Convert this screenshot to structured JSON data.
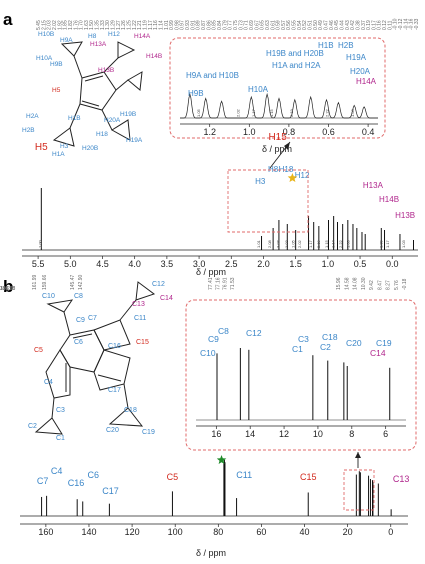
{
  "panels": [
    {
      "label": "a"
    },
    {
      "label": "b"
    }
  ],
  "chart_data": [
    {
      "type": "line",
      "id": "h1-nmr",
      "xlabel": "δ / ppm",
      "xlim": [
        5.75,
        -0.4
      ],
      "xticks": [
        "5.5",
        "5.0",
        "4.5",
        "4.0",
        "3.5",
        "3.0",
        "2.5",
        "2.0",
        "1.5",
        "1.0",
        "0.5",
        "0.0"
      ],
      "xtick_values": [
        5.5,
        5.0,
        4.5,
        4.0,
        3.5,
        3.0,
        2.5,
        2.0,
        1.5,
        1.0,
        0.5,
        0.0
      ],
      "peak_list": [
        "5.45",
        "2.15",
        "2.03",
        "2.02",
        "1.92",
        "1.85",
        "1.82",
        "1.76",
        "1.70",
        "1.63",
        "1.50",
        "1.35",
        "1.33",
        "1.30",
        "1.29",
        "1.27",
        "1.26",
        "1.25",
        "1.22",
        "1.21",
        "1.19",
        "1.17",
        "1.16",
        "1.14",
        "1.01",
        "0.99",
        "0.98",
        "0.97",
        "0.93",
        "0.91",
        "0.89",
        "0.87",
        "0.86",
        "0.85",
        "0.84",
        "0.79",
        "0.77",
        "0.75",
        "0.73",
        "0.71",
        "0.69",
        "0.67",
        "0.65",
        "0.63",
        "0.61",
        "0.59",
        "0.57",
        "0.56",
        "0.55",
        "0.54",
        "0.52",
        "0.51",
        "0.50",
        "0.49",
        "0.47",
        "0.46",
        "0.45",
        "0.44",
        "0.43",
        "0.42",
        "0.38",
        "0.37",
        "0.19",
        "0.17",
        "0.16",
        "0.12",
        "0.11",
        "-0.10",
        "-0.12",
        "-0.14",
        "-0.16",
        "-0.33"
      ],
      "peaks": [
        {
          "x": 5.45,
          "h": 0.62
        },
        {
          "x": 2.03,
          "h": 0.14
        },
        {
          "x": 1.85,
          "h": 0.22
        },
        {
          "x": 1.76,
          "h": 0.3
        },
        {
          "x": 1.63,
          "h": 0.26
        },
        {
          "x": 1.5,
          "h": 0.2
        },
        {
          "x": 1.3,
          "h": 0.34
        },
        {
          "x": 1.22,
          "h": 0.28
        },
        {
          "x": 1.14,
          "h": 0.24
        },
        {
          "x": 0.99,
          "h": 0.3
        },
        {
          "x": 0.91,
          "h": 0.34
        },
        {
          "x": 0.85,
          "h": 0.28
        },
        {
          "x": 0.77,
          "h": 0.26
        },
        {
          "x": 0.69,
          "h": 0.3
        },
        {
          "x": 0.61,
          "h": 0.26
        },
        {
          "x": 0.55,
          "h": 0.22
        },
        {
          "x": 0.47,
          "h": 0.18
        },
        {
          "x": 0.42,
          "h": 0.16
        },
        {
          "x": 0.17,
          "h": 0.22
        },
        {
          "x": 0.12,
          "h": 0.2
        },
        {
          "x": -0.12,
          "h": 0.16
        },
        {
          "x": -0.33,
          "h": 0.1
        }
      ],
      "integrals": [
        {
          "x": 5.45,
          "v": "1.00"
        },
        {
          "x": 2.05,
          "v": "1.01"
        },
        {
          "x": 1.88,
          "v": "2.08"
        },
        {
          "x": 1.75,
          "v": "3.07"
        },
        {
          "x": 1.62,
          "v": "1.03"
        },
        {
          "x": 1.52,
          "v": "1.05"
        },
        {
          "x": 1.42,
          "v": "2.02"
        },
        {
          "x": 1.25,
          "v": "1.17"
        },
        {
          "x": 1.12,
          "v": "2.19"
        },
        {
          "x": 1.0,
          "v": "1.15"
        },
        {
          "x": 0.9,
          "v": "1.14"
        },
        {
          "x": 0.78,
          "v": "2.22"
        },
        {
          "x": 0.66,
          "v": "1.03"
        },
        {
          "x": 0.15,
          "v": "1.09"
        },
        {
          "x": 0.05,
          "v": "1.17"
        },
        {
          "x": -0.2,
          "v": "1.03"
        }
      ],
      "labels": [
        {
          "text": "H5",
          "color": "red",
          "x": 5.45
        },
        {
          "text": "H3",
          "color": "blue",
          "x": 2.05
        },
        {
          "text": "H8",
          "color": "blue",
          "x": 1.85
        },
        {
          "text": "H15",
          "color": "red",
          "x": 1.78
        },
        {
          "text": "H18",
          "color": "blue",
          "x": 1.65
        },
        {
          "text": "H12",
          "color": "blue",
          "x": 1.4
        },
        {
          "text": "H13A",
          "color": "magenta",
          "x": 0.3
        },
        {
          "text": "H14B",
          "color": "magenta",
          "x": 0.05
        },
        {
          "text": "H13B",
          "color": "magenta",
          "x": -0.2
        }
      ],
      "star": {
        "x": 1.55,
        "color": "#e8b41a"
      },
      "inset": {
        "xlabel": "δ / ppm",
        "xlim": [
          1.35,
          0.35
        ],
        "xticks": [
          "1.2",
          "1.0",
          "0.8",
          "0.6",
          "0.4"
        ],
        "xtick_values": [
          1.2,
          1.0,
          0.8,
          0.6,
          0.4
        ],
        "integrals": [
          "1.05",
          "2.02",
          "1.17",
          "1.15",
          "2.19",
          "2.22",
          "1.03"
        ],
        "labels": [
          {
            "text": "H9B",
            "color": "blue"
          },
          {
            "text": "H9A and H10B",
            "color": "blue"
          },
          {
            "text": "H10A",
            "color": "blue"
          },
          {
            "text": "H1A and H2A",
            "color": "blue"
          },
          {
            "text": "H19B and H20B",
            "color": "blue"
          },
          {
            "text": "H1B",
            "color": "blue"
          },
          {
            "text": "H2B",
            "color": "blue"
          },
          {
            "text": "H19A",
            "color": "blue"
          },
          {
            "text": "H20A",
            "color": "blue"
          },
          {
            "text": "H14A",
            "color": "magenta"
          }
        ]
      }
    },
    {
      "type": "line",
      "id": "c13-nmr",
      "xlabel": "δ / ppm",
      "xlim": [
        172,
        -8
      ],
      "xticks": [
        "160",
        "140",
        "120",
        "100",
        "80",
        "60",
        "40",
        "20",
        "0"
      ],
      "xtick_values": [
        160,
        140,
        120,
        100,
        80,
        60,
        40,
        20,
        0
      ],
      "peak_list": [
        "161.99",
        "159.66",
        "145.47",
        "142.90",
        "130.53",
        "101.28",
        "77.41",
        "77.16",
        "76.91",
        "71.53",
        "38.28",
        "15.96",
        "14.58",
        "14.08",
        "10.30",
        "9.42",
        "8.47",
        "8.27",
        "5.76",
        "-0.18"
      ],
      "peaks": [
        {
          "x": 161.99,
          "h": 0.34
        },
        {
          "x": 159.66,
          "h": 0.36
        },
        {
          "x": 145.47,
          "h": 0.3
        },
        {
          "x": 142.9,
          "h": 0.26
        },
        {
          "x": 130.53,
          "h": 0.22
        },
        {
          "x": 101.28,
          "h": 0.44
        },
        {
          "x": 77.16,
          "h": 1.0
        },
        {
          "x": 77.41,
          "h": 0.96
        },
        {
          "x": 76.91,
          "h": 0.96
        },
        {
          "x": 71.53,
          "h": 0.32
        },
        {
          "x": 38.28,
          "h": 0.42
        },
        {
          "x": 15.96,
          "h": 0.74
        },
        {
          "x": 14.58,
          "h": 0.8
        },
        {
          "x": 14.08,
          "h": 0.78
        },
        {
          "x": 10.3,
          "h": 0.72
        },
        {
          "x": 9.42,
          "h": 0.66
        },
        {
          "x": 8.47,
          "h": 0.64
        },
        {
          "x": 8.27,
          "h": 0.6
        },
        {
          "x": 5.76,
          "h": 0.58
        },
        {
          "x": -0.18,
          "h": 0.12
        }
      ],
      "labels": [
        {
          "text": "C7",
          "color": "blue"
        },
        {
          "text": "C4",
          "color": "blue"
        },
        {
          "text": "C16",
          "color": "blue"
        },
        {
          "text": "C6",
          "color": "blue"
        },
        {
          "text": "C17",
          "color": "blue"
        },
        {
          "text": "C5",
          "color": "red"
        },
        {
          "text": "C11",
          "color": "blue"
        },
        {
          "text": "C15",
          "color": "red"
        },
        {
          "text": "C13",
          "color": "magenta"
        }
      ],
      "star": {
        "x": 78.5,
        "color": "#1f8a2a"
      },
      "inset": {
        "xticks": [
          "16",
          "14",
          "12",
          "10",
          "8",
          "6"
        ],
        "xtick_values": [
          16,
          14,
          12,
          10,
          8,
          6
        ],
        "xlim": [
          17.2,
          4.8
        ],
        "labels": [
          {
            "text": "C10",
            "color": "blue"
          },
          {
            "text": "C9",
            "color": "blue"
          },
          {
            "text": "C8",
            "color": "blue"
          },
          {
            "text": "C12",
            "color": "blue"
          },
          {
            "text": "C3",
            "color": "blue"
          },
          {
            "text": "C1",
            "color": "blue"
          },
          {
            "text": "C18",
            "color": "blue"
          },
          {
            "text": "C2",
            "color": "blue"
          },
          {
            "text": "C20",
            "color": "blue"
          },
          {
            "text": "C19",
            "color": "blue"
          },
          {
            "text": "C14",
            "color": "magenta"
          }
        ]
      }
    }
  ],
  "structure_a": {
    "labels": [
      {
        "text": "H10B",
        "color": "blue"
      },
      {
        "text": "H9A",
        "color": "blue"
      },
      {
        "text": "H8",
        "color": "blue"
      },
      {
        "text": "H13A",
        "color": "magenta"
      },
      {
        "text": "H12",
        "color": "blue"
      },
      {
        "text": "H14A",
        "color": "magenta"
      },
      {
        "text": "H10A",
        "color": "blue"
      },
      {
        "text": "H9B",
        "color": "blue"
      },
      {
        "text": "H13B",
        "color": "magenta"
      },
      {
        "text": "H14B",
        "color": "magenta"
      },
      {
        "text": "H5",
        "color": "red"
      },
      {
        "text": "H2A",
        "color": "blue"
      },
      {
        "text": "H2B",
        "color": "blue"
      },
      {
        "text": "H1B",
        "color": "blue"
      },
      {
        "text": "H20A",
        "color": "blue"
      },
      {
        "text": "H19B",
        "color": "blue"
      },
      {
        "text": "H3",
        "color": "blue"
      },
      {
        "text": "H18",
        "color": "blue"
      },
      {
        "text": "H19A",
        "color": "blue"
      },
      {
        "text": "H1A",
        "color": "blue"
      },
      {
        "text": "H20B",
        "color": "blue"
      }
    ]
  },
  "structure_b": {
    "labels": [
      {
        "text": "C10",
        "color": "blue"
      },
      {
        "text": "C8",
        "color": "blue"
      },
      {
        "text": "C13",
        "color": "magenta"
      },
      {
        "text": "C12",
        "color": "blue"
      },
      {
        "text": "C14",
        "color": "magenta"
      },
      {
        "text": "C9",
        "color": "blue"
      },
      {
        "text": "C7",
        "color": "blue"
      },
      {
        "text": "C11",
        "color": "blue"
      },
      {
        "text": "C15",
        "color": "red"
      },
      {
        "text": "C6",
        "color": "blue"
      },
      {
        "text": "C5",
        "color": "red"
      },
      {
        "text": "C16",
        "color": "blue"
      },
      {
        "text": "C4",
        "color": "blue"
      },
      {
        "text": "C17",
        "color": "blue"
      },
      {
        "text": "C3",
        "color": "blue"
      },
      {
        "text": "C2",
        "color": "blue"
      },
      {
        "text": "C1",
        "color": "blue"
      },
      {
        "text": "C20",
        "color": "blue"
      },
      {
        "text": "C18",
        "color": "blue"
      },
      {
        "text": "C19",
        "color": "blue"
      }
    ]
  },
  "colors": {
    "blue": "#3b86c8",
    "magenta": "#b0268c",
    "red": "#d22a1e",
    "inset_border": "#e06a6a"
  }
}
